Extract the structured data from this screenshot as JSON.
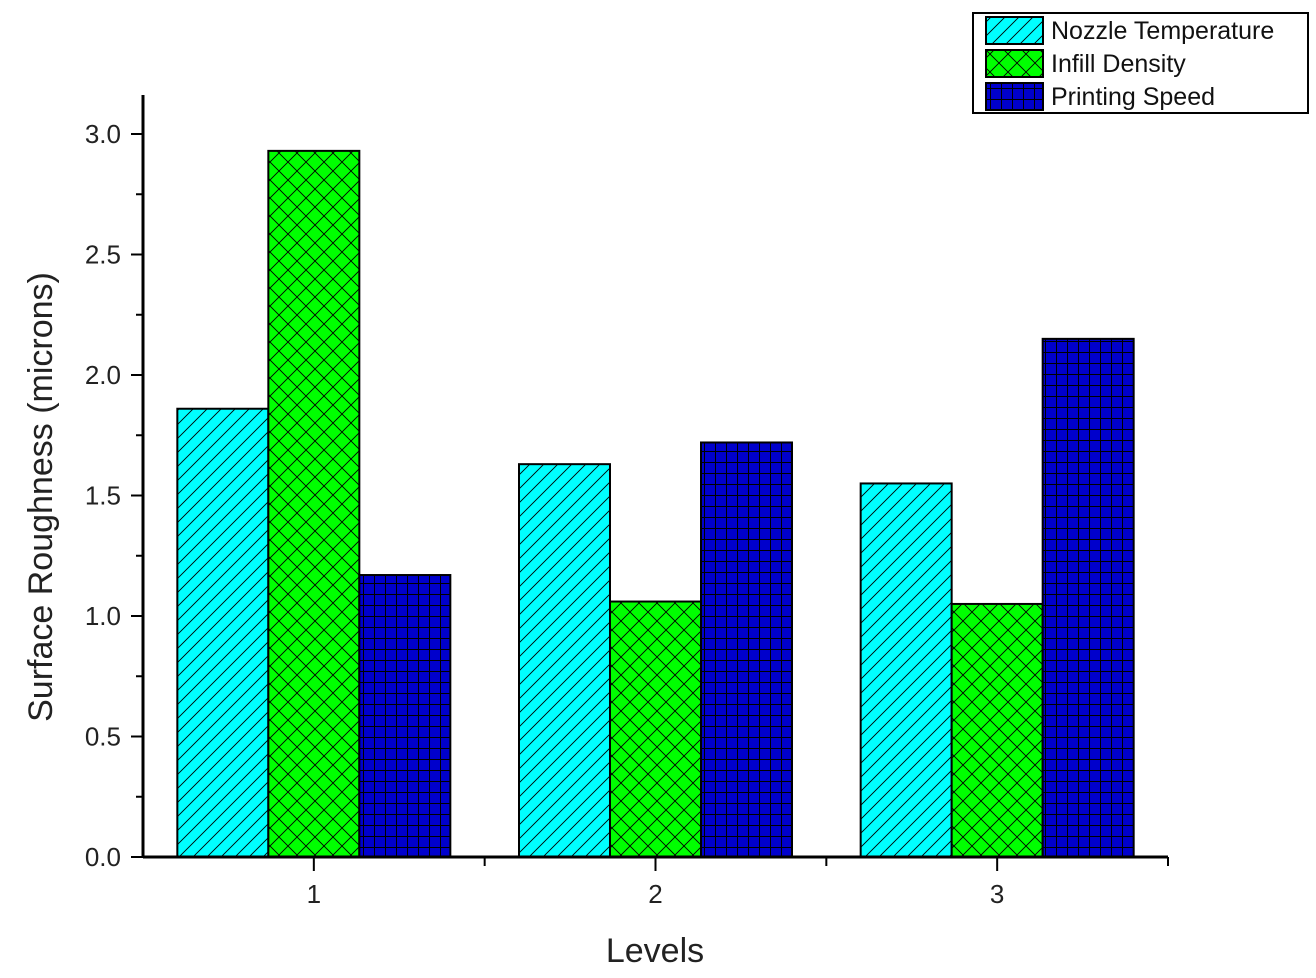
{
  "chart_data": {
    "type": "bar",
    "title": "",
    "xlabel": "Levels",
    "ylabel": "Surface Roughness (microns)",
    "categories": [
      "1",
      "2",
      "3"
    ],
    "ylim": [
      0,
      3.2
    ],
    "yticks": [
      "0.0",
      "0.5",
      "1.0",
      "1.5",
      "2.0",
      "2.5",
      "3.0"
    ],
    "grid": false,
    "legend_position": "top-right",
    "series": [
      {
        "name": "Nozzle Temperature",
        "values": [
          1.86,
          1.63,
          1.55
        ],
        "color": "#00ffff",
        "pattern": "diagonal-hatch"
      },
      {
        "name": "Infill Density",
        "values": [
          2.93,
          1.06,
          1.05
        ],
        "color": "#00ff00",
        "pattern": "cross-hatch"
      },
      {
        "name": "Printing Speed",
        "values": [
          1.17,
          1.72,
          2.15
        ],
        "color": "#0000cc",
        "pattern": "grid"
      }
    ]
  }
}
